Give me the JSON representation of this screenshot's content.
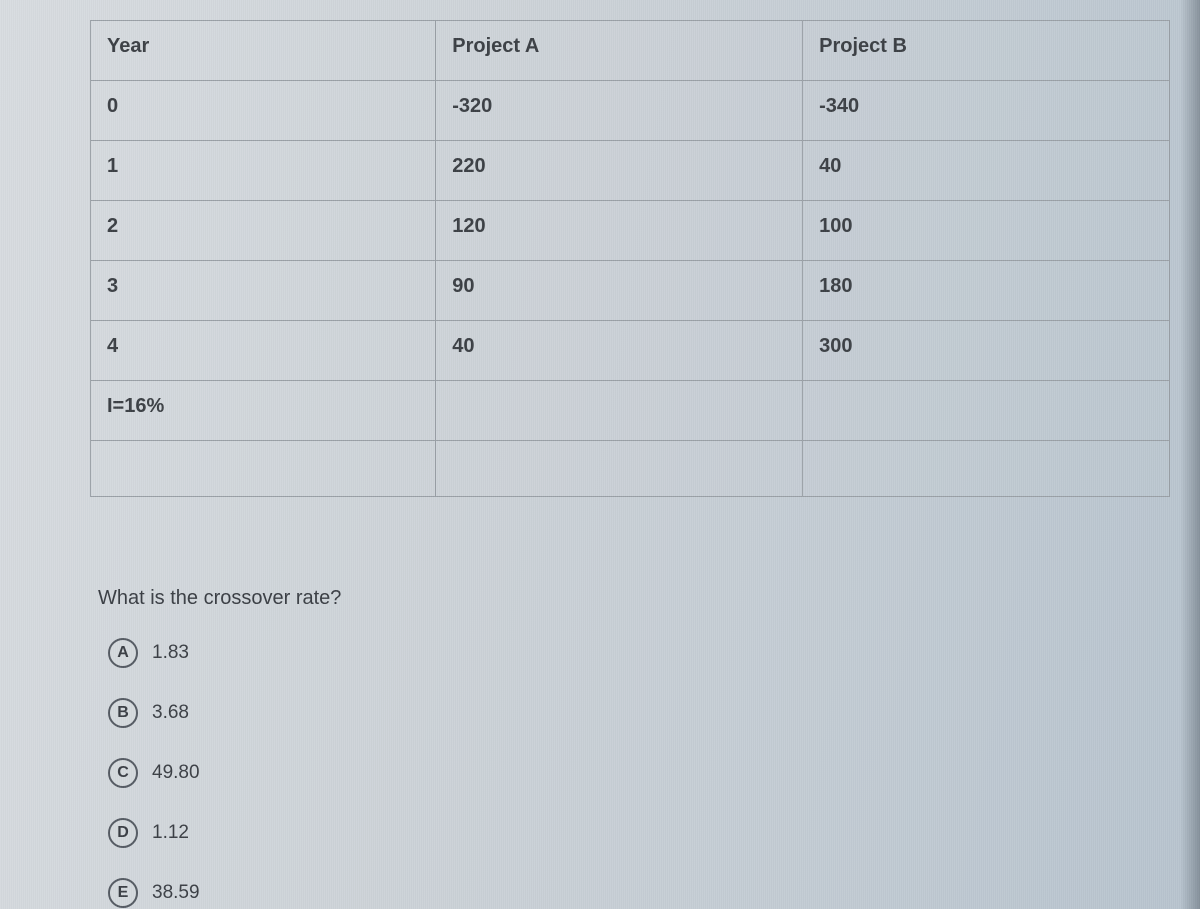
{
  "table": {
    "columns": [
      "Year",
      "Project A",
      "Project B"
    ],
    "rows": [
      [
        "0",
        "-320",
        "-340"
      ],
      [
        "1",
        "220",
        "40"
      ],
      [
        "2",
        "120",
        "100"
      ],
      [
        "3",
        "90",
        "180"
      ],
      [
        "4",
        "40",
        "300"
      ],
      [
        "I=16%",
        "",
        ""
      ],
      [
        "",
        "",
        ""
      ]
    ],
    "border_color": "#9aa0a6",
    "cell_font_size": 20,
    "header_font_weight": 700
  },
  "question": "What is the crossover rate?",
  "options": [
    {
      "letter": "A",
      "text": "1.83"
    },
    {
      "letter": "B",
      "text": "3.68"
    },
    {
      "letter": "C",
      "text": "49.80"
    },
    {
      "letter": "D",
      "text": "1.12"
    },
    {
      "letter": "E",
      "text": "38.59"
    }
  ],
  "colors": {
    "background_gradient_from": "#d8dce0",
    "background_gradient_to": "#b8c4cf",
    "text": "#3a3f45",
    "bubble_border": "#555b63"
  }
}
